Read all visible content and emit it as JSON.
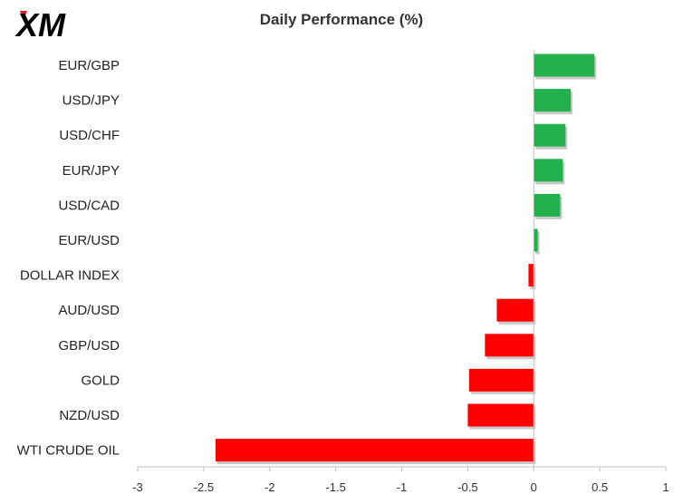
{
  "header": {
    "logo_text": "XM",
    "title": "Daily Performance (%)"
  },
  "colors": {
    "positive": "#22b14c",
    "negative": "#ff0000",
    "axis": "#bfbfbf",
    "logo": "#000000",
    "logo_accent": "#e31b23"
  },
  "chart_data": {
    "type": "bar",
    "orientation": "horizontal",
    "title": "Daily Performance (%)",
    "categories": [
      "EUR/GBP",
      "USD/JPY",
      "USD/CHF",
      "EUR/JPY",
      "USD/CAD",
      "EUR/USD",
      "DOLLAR INDEX",
      "AUD/USD",
      "GBP/USD",
      "GOLD",
      "NZD/USD",
      "WTI CRUDE OIL"
    ],
    "values": [
      0.46,
      0.28,
      0.24,
      0.22,
      0.2,
      0.03,
      -0.04,
      -0.28,
      -0.37,
      -0.49,
      -0.5,
      -2.41
    ],
    "xlim": [
      -3,
      1
    ],
    "xticks": [
      -3,
      -2.5,
      -2,
      -1.5,
      -1,
      -0.5,
      0,
      0.5,
      1
    ],
    "xtick_labels": [
      "-3",
      "-2.5",
      "-2",
      "-1.5",
      "-1",
      "-0.5",
      "0",
      "0.5",
      "1"
    ],
    "grid": false,
    "legend": "none"
  }
}
